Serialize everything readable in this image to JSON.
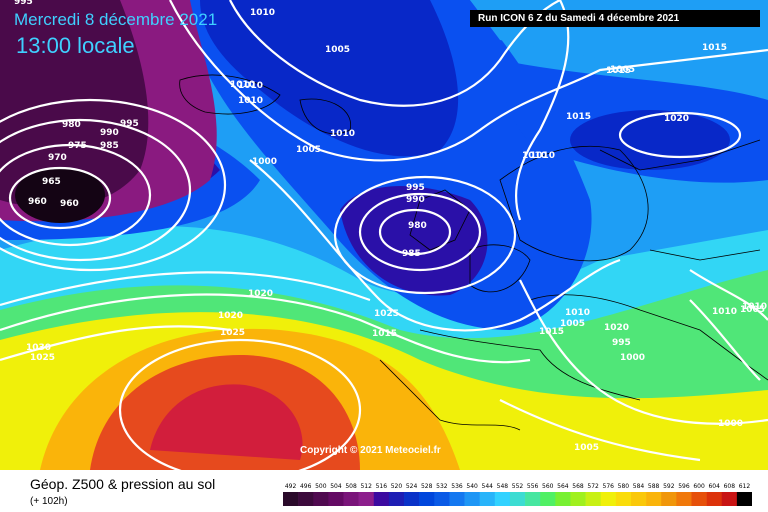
{
  "header": {
    "date_label": "Mercredi 8 décembre 2021",
    "time_label": "13:00 locale",
    "run_label": "Run ICON 6 Z du Samedi 4 décembre 2021"
  },
  "map": {
    "copyright": "Copyright © 2021 Meteociel.fr",
    "isobar_labels": [
      "995",
      "1010",
      "1005",
      "1010",
      "1010",
      "995",
      "980",
      "990",
      "985",
      "975",
      "970",
      "965",
      "960",
      "960",
      "1000",
      "1010",
      "1005",
      "995",
      "990",
      "980",
      "985",
      "1010",
      "1015",
      "1020",
      "1015",
      "1015",
      "1010",
      "1020",
      "1015",
      "1020",
      "1025",
      "1030",
      "1025",
      "1025",
      "1010",
      "1015",
      "1005",
      "995",
      "1000",
      "1010",
      "1010",
      "1000",
      "1005",
      "1005",
      "1020",
      "1010",
      "1005"
    ]
  },
  "legend": {
    "title": "Géop. Z500 & pression au sol",
    "subtitle": "(+ 102h)",
    "scale_values": [
      "492",
      "496",
      "500",
      "504",
      "508",
      "512",
      "516",
      "520",
      "524",
      "528",
      "532",
      "536",
      "540",
      "544",
      "548",
      "552",
      "556",
      "560",
      "564",
      "568",
      "572",
      "576",
      "580",
      "584",
      "588",
      "592",
      "596",
      "600",
      "604",
      "608",
      "612"
    ],
    "scale_colors": [
      "#2a0a2a",
      "#3c0a3c",
      "#500a50",
      "#640a64",
      "#7a147a",
      "#8c1e8c",
      "#3c0aa0",
      "#1e1eb4",
      "#0a32c8",
      "#0046dc",
      "#0a5ae6",
      "#1478f0",
      "#1e96f5",
      "#28b4fa",
      "#32d2ff",
      "#3cdcd2",
      "#46e6a0",
      "#50f064",
      "#78f032",
      "#a0f01e",
      "#c8f014",
      "#f0f00a",
      "#fadc0a",
      "#fac80a",
      "#fab40a",
      "#f0960a",
      "#f0780a",
      "#e6500a",
      "#dc320a",
      "#c81414",
      "#000000"
    ],
    "palette": {
      "deep_violet": "#4a0a4a",
      "violet": "#8a1a80",
      "indigo": "#2a10a8",
      "deep_blue": "#0828c8",
      "blue": "#0a50f0",
      "sky": "#1e9ef5",
      "cyan": "#32d6f5",
      "green": "#50e678",
      "lime": "#a0f028",
      "yellow": "#f0f00a",
      "orange": "#fab40a",
      "red": "#e64a1e",
      "crimson": "#d21e3c"
    }
  }
}
